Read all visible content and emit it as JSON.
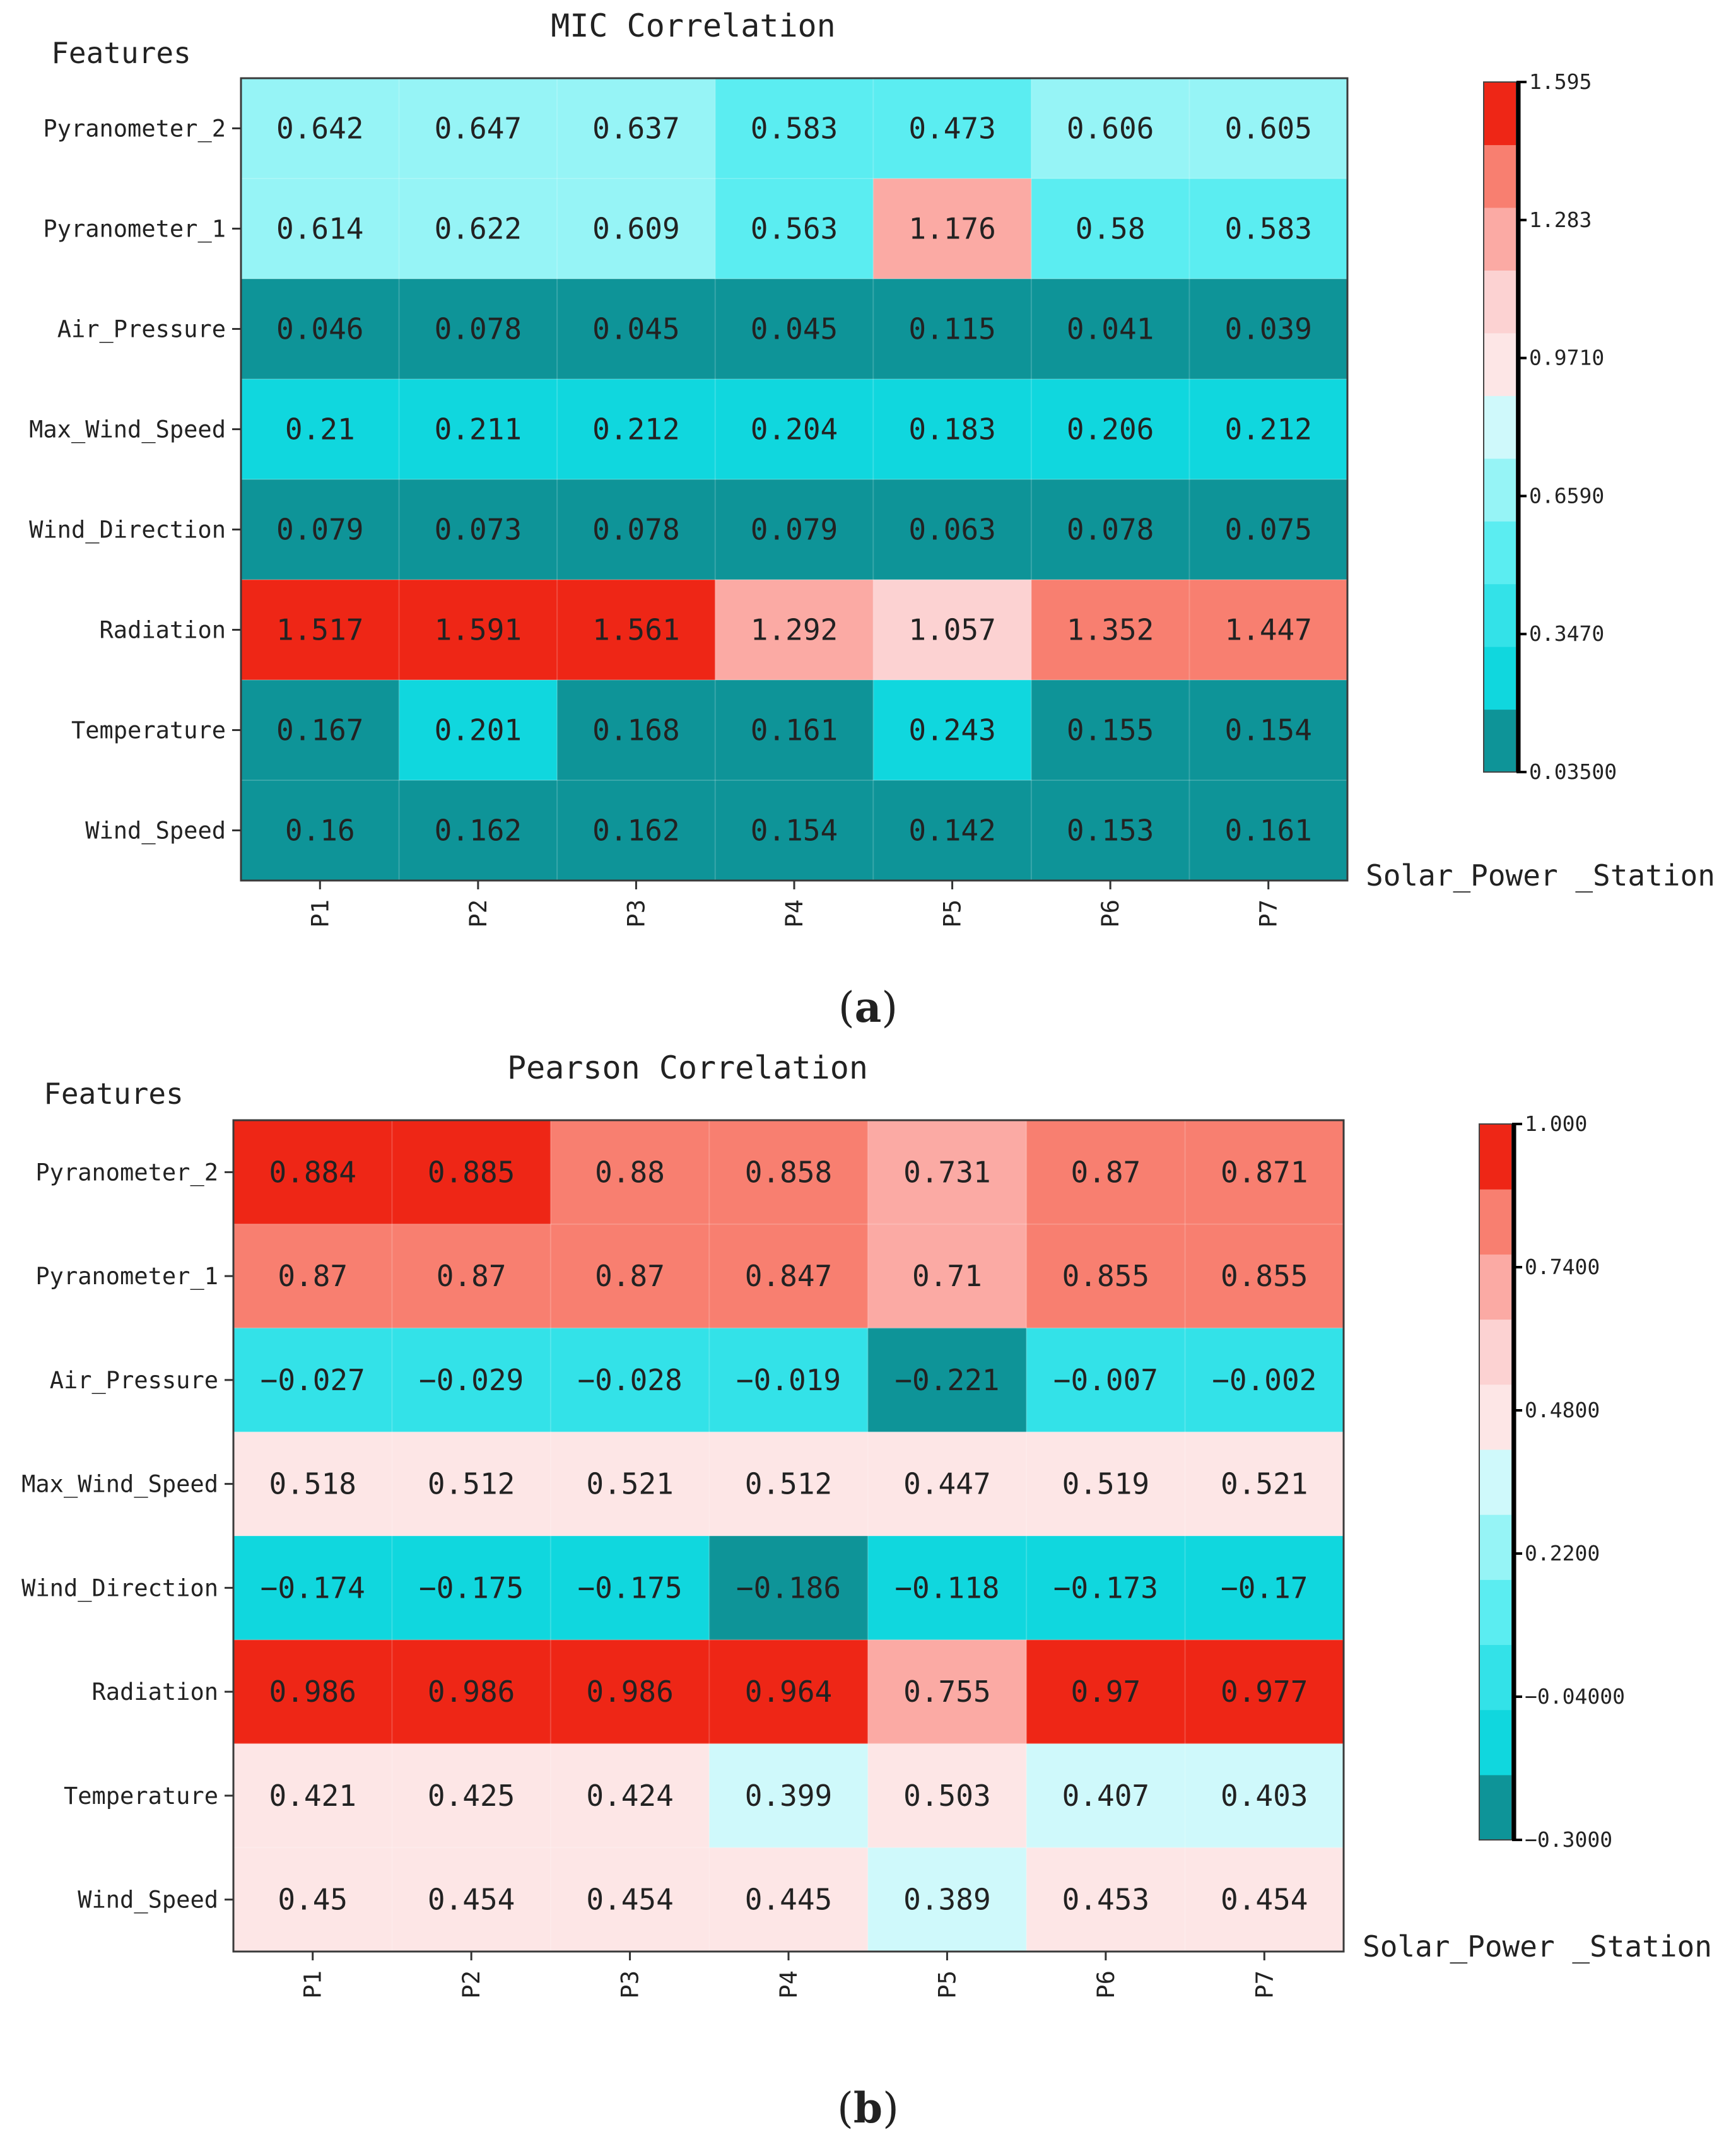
{
  "chart_data": [
    {
      "type": "heatmap",
      "panel_label": "a",
      "title": "MIC Correlation",
      "ylabel": "Features",
      "xlabel": "Solar_Power _Station",
      "stations": [
        "P1",
        "P2",
        "P3",
        "P4",
        "P5",
        "P6",
        "P7"
      ],
      "features": [
        "Pyranometer_2",
        "Pyranometer_1",
        "Air_Pressure",
        "Max_Wind_Speed",
        "Wind_Direction",
        "Radiation",
        "Temperature",
        "Wind_Speed"
      ],
      "value_labels": [
        [
          "0.642",
          "0.647",
          "0.637",
          "0.583",
          "0.473",
          "0.606",
          "0.605"
        ],
        [
          "0.614",
          "0.622",
          "0.609",
          "0.563",
          "1.176",
          "0.58",
          "0.583"
        ],
        [
          "0.046",
          "0.078",
          "0.045",
          "0.045",
          "0.115",
          "0.041",
          "0.039"
        ],
        [
          "0.21",
          "0.211",
          "0.212",
          "0.204",
          "0.183",
          "0.206",
          "0.212"
        ],
        [
          "0.079",
          "0.073",
          "0.078",
          "0.079",
          "0.063",
          "0.078",
          "0.075"
        ],
        [
          "1.517",
          "1.591",
          "1.561",
          "1.292",
          "1.057",
          "1.352",
          "1.447"
        ],
        [
          "0.167",
          "0.201",
          "0.168",
          "0.161",
          "0.243",
          "0.155",
          "0.154"
        ],
        [
          "0.16",
          "0.162",
          "0.162",
          "0.154",
          "0.142",
          "0.153",
          "0.161"
        ]
      ],
      "colorbar": {
        "min": 0.035,
        "max": 1.595,
        "ticks": [
          1.595,
          1.283,
          0.971,
          0.659,
          0.347,
          0.035
        ],
        "tick_labels": [
          "1.595",
          "1.283",
          "0.9710",
          "0.6590",
          "0.3470",
          "0.03500"
        ],
        "colors": [
          "#0e9498",
          "#10d7de",
          "#33e2e8",
          "#5bedf1",
          "#96f4f6",
          "#cff9fb",
          "#fde6e6",
          "#fcd2d2",
          "#fbaaa4",
          "#f87f70",
          "#ee2616"
        ]
      }
    },
    {
      "type": "heatmap",
      "panel_label": "b",
      "title": "Pearson Correlation",
      "ylabel": "Features",
      "xlabel": "Solar_Power _Station",
      "stations": [
        "P1",
        "P2",
        "P3",
        "P4",
        "P5",
        "P6",
        "P7"
      ],
      "features": [
        "Pyranometer_2",
        "Pyranometer_1",
        "Air_Pressure",
        "Max_Wind_Speed",
        "Wind_Direction",
        "Radiation",
        "Temperature",
        "Wind_Speed"
      ],
      "value_labels": [
        [
          "0.884",
          "0.885",
          "0.88",
          "0.858",
          "0.731",
          "0.87",
          "0.871"
        ],
        [
          "0.87",
          "0.87",
          "0.87",
          "0.847",
          "0.71",
          "0.855",
          "0.855"
        ],
        [
          "−0.027",
          "−0.029",
          "−0.028",
          "−0.019",
          "−0.221",
          "−0.007",
          "−0.002"
        ],
        [
          "0.518",
          "0.512",
          "0.521",
          "0.512",
          "0.447",
          "0.519",
          "0.521"
        ],
        [
          "−0.174",
          "−0.175",
          "−0.175",
          "−0.186",
          "−0.118",
          "−0.173",
          "−0.17"
        ],
        [
          "0.986",
          "0.986",
          "0.986",
          "0.964",
          "0.755",
          "0.97",
          "0.977"
        ],
        [
          "0.421",
          "0.425",
          "0.424",
          "0.399",
          "0.503",
          "0.407",
          "0.403"
        ],
        [
          "0.45",
          "0.454",
          "0.454",
          "0.445",
          "0.389",
          "0.453",
          "0.454"
        ]
      ],
      "colorbar": {
        "min": -0.3,
        "max": 1.0,
        "ticks": [
          1.0,
          0.74,
          0.48,
          0.22,
          -0.04,
          -0.3
        ],
        "tick_labels": [
          "1.000",
          "0.7400",
          "0.4800",
          "0.2200",
          "−0.04000",
          "−0.3000"
        ],
        "colors": [
          "#0e9498",
          "#10d7de",
          "#33e2e8",
          "#5bedf1",
          "#96f4f6",
          "#cff9fb",
          "#fde6e6",
          "#fcd2d2",
          "#fbaaa4",
          "#f87f70",
          "#ee2616"
        ]
      }
    }
  ]
}
